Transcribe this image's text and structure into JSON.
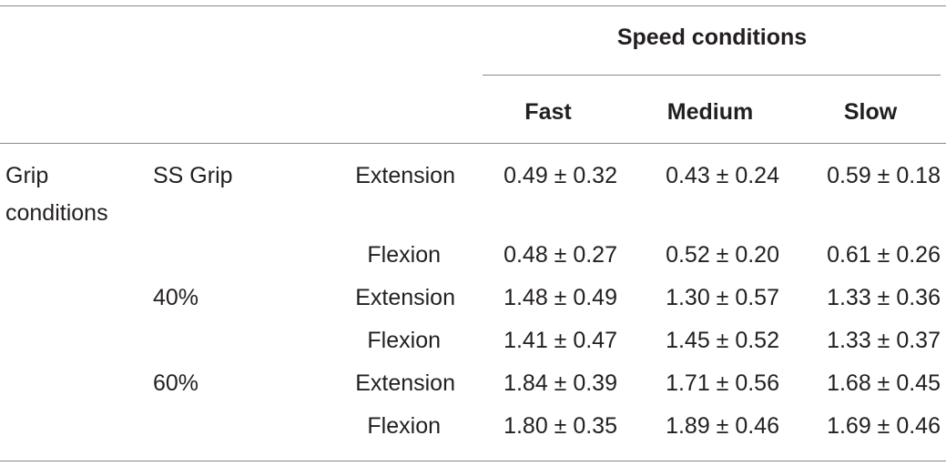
{
  "header": {
    "group_label": "Speed conditions",
    "columns": [
      "Fast",
      "Medium",
      "Slow"
    ]
  },
  "row_group_label_line1": "Grip",
  "row_group_label_line2": "conditions",
  "rows": [
    {
      "grip": "SS Grip",
      "movement": "Extension",
      "values": [
        "0.49 ± 0.32",
        "0.43 ± 0.24",
        "0.59 ± 0.18"
      ]
    },
    {
      "grip": "",
      "movement": "Flexion",
      "values": [
        "0.48 ± 0.27",
        "0.52 ± 0.20",
        "0.61 ± 0.26"
      ]
    },
    {
      "grip": "40%",
      "movement": "Extension",
      "values": [
        "1.48 ± 0.49",
        "1.30 ± 0.57",
        "1.33 ± 0.36"
      ]
    },
    {
      "grip": "",
      "movement": "Flexion",
      "values": [
        "1.41 ± 0.47",
        "1.45 ± 0.52",
        "1.33 ± 0.37"
      ]
    },
    {
      "grip": "60%",
      "movement": "Extension",
      "values": [
        "1.84 ± 0.39",
        "1.71 ± 0.56",
        "1.68 ± 0.45"
      ]
    },
    {
      "grip": "",
      "movement": "Flexion",
      "values": [
        "1.80 ± 0.35",
        "1.89 ± 0.46",
        "1.69 ± 0.46"
      ]
    }
  ]
}
